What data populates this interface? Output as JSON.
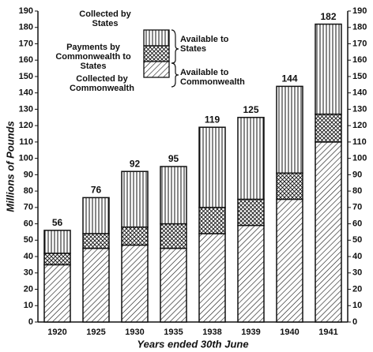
{
  "chart_data": {
    "type": "stacked_bar",
    "y_label": "Millions of Pounds",
    "x_label": "Years ended 30th June",
    "categories": [
      "1920",
      "1925",
      "1930",
      "1935",
      "1938",
      "1939",
      "1940",
      "1941"
    ],
    "series": [
      {
        "name": "Collected by Commonwealth",
        "color": "#111",
        "pattern": "diagonal",
        "values": [
          35,
          45,
          47,
          45,
          54,
          59,
          75,
          110
        ]
      },
      {
        "name": "Payments by Commonwealth to States",
        "color": "#111",
        "pattern": "crosshatch",
        "values": [
          7,
          9,
          11,
          15,
          16,
          16,
          16,
          17
        ]
      },
      {
        "name": "Collected by States",
        "color": "#111",
        "pattern": "vertical",
        "values": [
          14,
          22,
          34,
          35,
          49,
          50,
          53,
          55
        ]
      }
    ],
    "totals": [
      56,
      76,
      92,
      95,
      119,
      125,
      144,
      182
    ],
    "annotations": [
      "Available to States",
      "Available to Commonwealth"
    ],
    "ylim": [
      0,
      190
    ],
    "yticks": [
      0,
      10,
      20,
      30,
      40,
      50,
      60,
      70,
      80,
      90,
      100,
      110,
      120,
      130,
      140,
      150,
      160,
      170,
      180,
      190
    ],
    "y2lim": [
      0,
      190
    ],
    "y2ticks": [
      0,
      10,
      20,
      30,
      40,
      50,
      60,
      70,
      80,
      90,
      100,
      110,
      120,
      130,
      140,
      150,
      160,
      170,
      180,
      190
    ]
  }
}
